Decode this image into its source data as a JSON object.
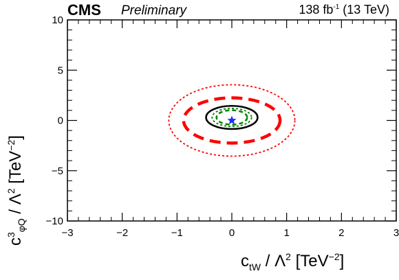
{
  "header": {
    "experiment": "CMS",
    "status": "Preliminary",
    "luminosity": "138 fb",
    "luminosity_sup": "-1",
    "energy": "(13 TeV)"
  },
  "chart_data": {
    "type": "scatter",
    "xlabel": {
      "var": "c",
      "sub": "tW",
      "rest": " / Λ",
      "sup": "2",
      "unit": " [TeV",
      "unitsup": "−2",
      "close": "]"
    },
    "ylabel": {
      "var": "c",
      "sup1": "3",
      "sub": "φQ",
      "rest": " / Λ",
      "sup": "2",
      "unit": " [TeV",
      "unitsup": "−2",
      "close": "]"
    },
    "xlim": [
      -3,
      3
    ],
    "ylim": [
      -10,
      10
    ],
    "x_ticks": [
      -3,
      -2,
      -1,
      0,
      1,
      2,
      3
    ],
    "y_ticks": [
      -10,
      -5,
      0,
      5,
      10
    ],
    "best_fit": {
      "x": 0.0,
      "y": 0.0,
      "marker": "star",
      "color": "#1f2bff"
    },
    "contours": [
      {
        "style": "dotted",
        "color": "#ff0000",
        "cx": 0.0,
        "cy": 0.0,
        "rx": 1.15,
        "ry": 3.55
      },
      {
        "style": "dashed",
        "color": "#ff0000",
        "cx": 0.0,
        "cy": 0.0,
        "rx": 0.88,
        "ry": 2.25
      },
      {
        "style": "solid",
        "color": "#000000",
        "cx": 0.0,
        "cy": 0.3,
        "rx": 0.47,
        "ry": 1.15
      },
      {
        "style": "dotted",
        "color": "#007a00",
        "cx": 0.0,
        "cy": 0.3,
        "rx": 0.36,
        "ry": 0.9
      },
      {
        "style": "dashed",
        "color": "#008800",
        "cx": 0.0,
        "cy": 0.3,
        "rx": 0.28,
        "ry": 0.72
      }
    ]
  }
}
